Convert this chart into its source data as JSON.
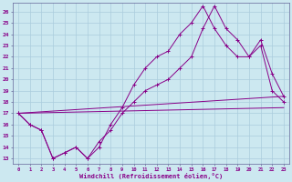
{
  "xlabel": "Windchill (Refroidissement éolien,°C)",
  "bg_color": "#cce8f0",
  "line_color": "#880088",
  "xlim": [
    -0.5,
    23.5
  ],
  "ylim": [
    12.5,
    26.8
  ],
  "xticks": [
    0,
    1,
    2,
    3,
    4,
    5,
    6,
    7,
    8,
    9,
    10,
    11,
    12,
    13,
    14,
    15,
    16,
    17,
    18,
    19,
    20,
    21,
    22,
    23
  ],
  "yticks": [
    13,
    14,
    15,
    16,
    17,
    18,
    19,
    20,
    21,
    22,
    23,
    24,
    25,
    26
  ],
  "line1_x": [
    0,
    1,
    2,
    3,
    4,
    5,
    6,
    7,
    8,
    9,
    10,
    11,
    12,
    13,
    14,
    15,
    16,
    17,
    18,
    19,
    20,
    21,
    22,
    23
  ],
  "line1_y": [
    17,
    16,
    15.5,
    13,
    13.5,
    14,
    13,
    14,
    16,
    17.5,
    19.5,
    21,
    22,
    22.5,
    24,
    25,
    26.5,
    24.5,
    23,
    22,
    22,
    23,
    19,
    18
  ],
  "line2_x": [
    0,
    1,
    2,
    3,
    4,
    5,
    6,
    7,
    8,
    9,
    10,
    11,
    12,
    13,
    14,
    15,
    16,
    17,
    18,
    19,
    20,
    21,
    22,
    23
  ],
  "line2_y": [
    17,
    16,
    15.5,
    13,
    13.5,
    14,
    13,
    14.5,
    15.5,
    17,
    18,
    19,
    19.5,
    20,
    21,
    22,
    24.5,
    26.5,
    24.5,
    23.5,
    22,
    23.5,
    20.5,
    18.5
  ],
  "line3_x": [
    0,
    23
  ],
  "line3_y": [
    17,
    18.5
  ],
  "line4_x": [
    0,
    23
  ],
  "line4_y": [
    17,
    17.5
  ]
}
